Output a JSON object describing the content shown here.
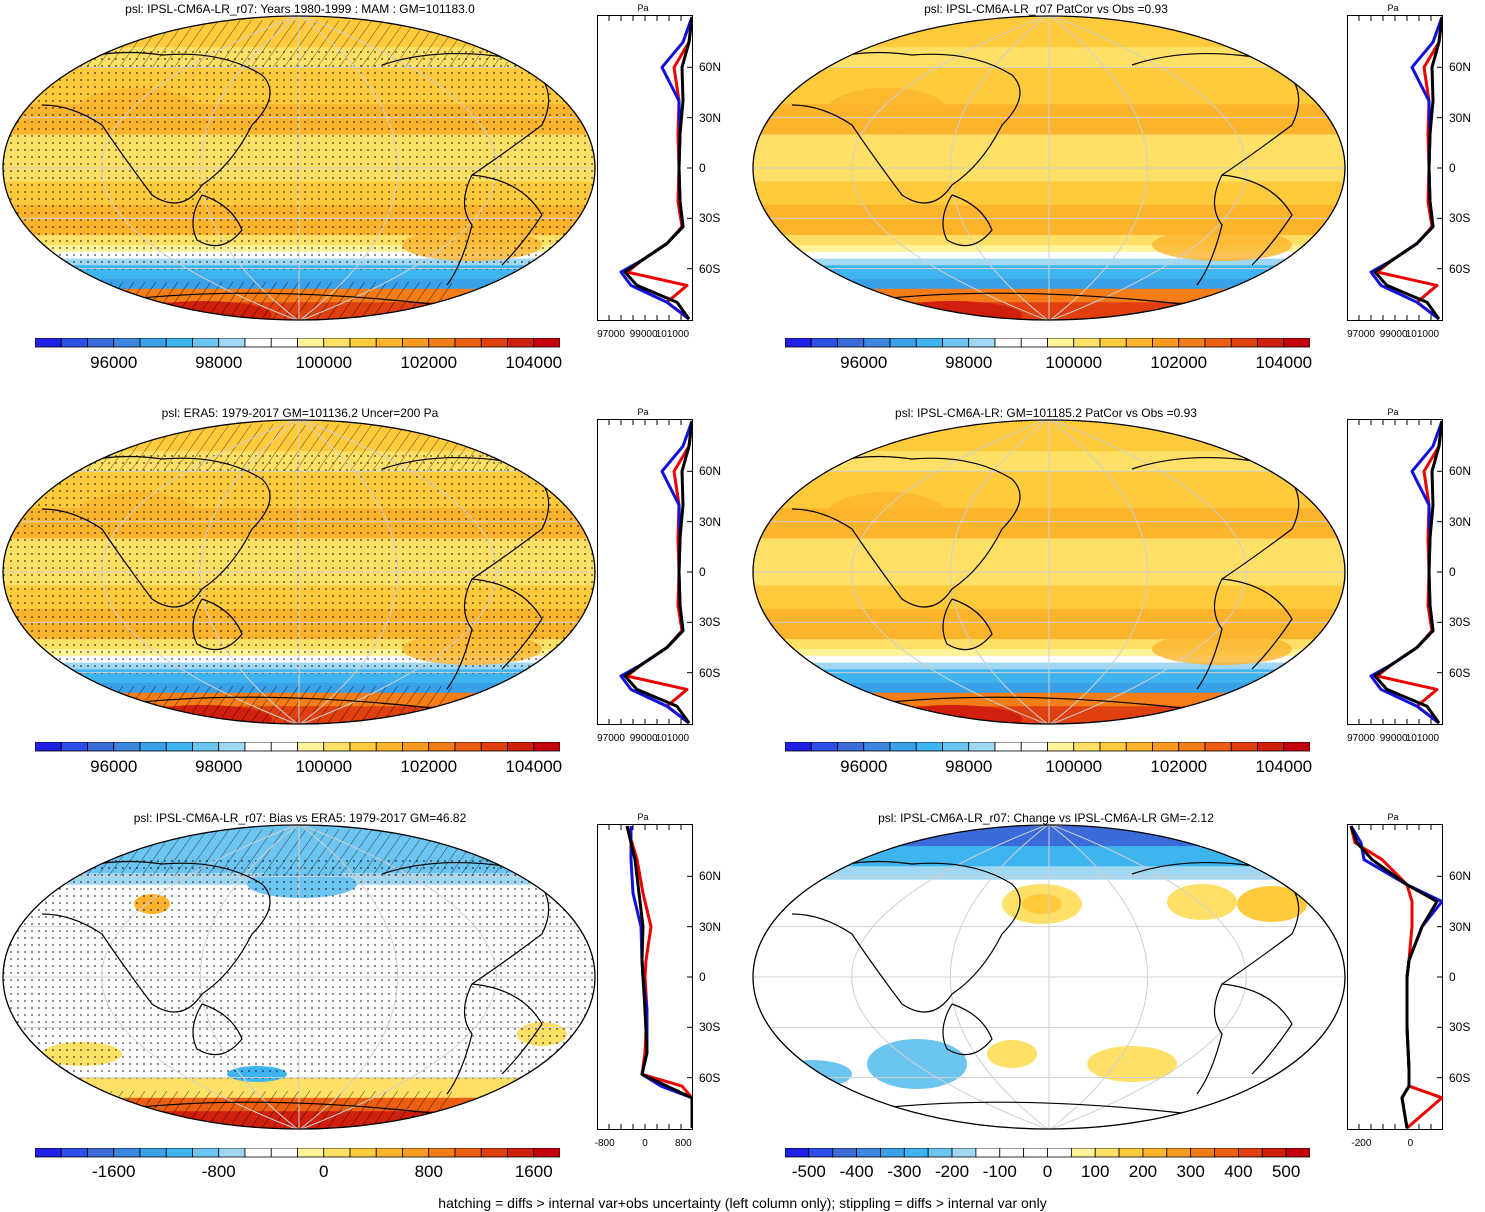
{
  "panels": [
    {
      "id": "p1",
      "title": "psl: IPSL-CM6A-LR_r07: Years 1980-1999 : MAM : GM=101183.0",
      "palette": "abs",
      "hatch": true,
      "stipple": true,
      "profile": "abs",
      "cbar_labels": [
        "96000",
        "98000",
        "100000",
        "102000",
        "104000"
      ],
      "prof_x": [
        "97000",
        "99000",
        "101000"
      ]
    },
    {
      "id": "p2",
      "title": "psl: IPSL-CM6A-LR_r07 PatCor vs Obs =0.93",
      "palette": "abs",
      "hatch": false,
      "stipple": false,
      "profile": "abs",
      "cbar_labels": [
        "96000",
        "98000",
        "100000",
        "102000",
        "104000"
      ],
      "prof_x": [
        "97000",
        "99000",
        "101000"
      ]
    },
    {
      "id": "p3",
      "title": "psl: ERA5: 1979-2017 GM=101136.2 Uncer=200 Pa",
      "palette": "abs",
      "hatch": true,
      "stipple": true,
      "profile": "abs",
      "cbar_labels": [
        "96000",
        "98000",
        "100000",
        "102000",
        "104000"
      ],
      "prof_x": [
        "97000",
        "99000",
        "101000"
      ]
    },
    {
      "id": "p4",
      "title": "psl: IPSL-CM6A-LR: GM=101185.2 PatCor vs Obs =0.93",
      "palette": "abs",
      "hatch": false,
      "stipple": false,
      "profile": "abs",
      "cbar_labels": [
        "96000",
        "98000",
        "100000",
        "102000",
        "104000"
      ],
      "prof_x": [
        "97000",
        "99000",
        "101000"
      ]
    },
    {
      "id": "p5",
      "title": "psl: IPSL-CM6A-LR_r07: Bias vs ERA5: 1979-2017 GM=46.82",
      "palette": "bias",
      "hatch": true,
      "stipple": true,
      "profile": "bias",
      "cbar_labels": [
        "-1600",
        "-800",
        "0",
        "800",
        "1600"
      ],
      "prof_x": [
        "-800",
        "0",
        "800"
      ]
    },
    {
      "id": "p6",
      "title": "psl: IPSL-CM6A-LR_r07: Change vs IPSL-CM6A-LR GM=-2.12",
      "palette": "change",
      "hatch": false,
      "stipple": false,
      "profile": "change",
      "cbar_labels": [
        "-500",
        "-400",
        "-300",
        "-200",
        "-100",
        "0",
        "100",
        "200",
        "300",
        "400",
        "500"
      ],
      "prof_x": [
        "-200",
        "0"
      ]
    }
  ],
  "lat_labels": [
    "60N",
    "30N",
    "0",
    "30S",
    "60S"
  ],
  "profile_unit": "Pa",
  "colormap": [
    "#1f1fe5",
    "#2d4ee8",
    "#3a6bd9",
    "#3d86df",
    "#3aa0e8",
    "#3fb5ef",
    "#6cc4f0",
    "#a0d8f3",
    "#ffffff",
    "#ffffff",
    "#fff39a",
    "#ffe066",
    "#ffcb3d",
    "#fdb42d",
    "#f99b21",
    "#f47d17",
    "#ec5e12",
    "#e0400f",
    "#d11f0e",
    "#c4000d"
  ],
  "footer": "hatching = diffs > internal var+obs uncertainty (left column only); stippling = diffs > internal var only",
  "chart_data": [
    {
      "type": "heatmap",
      "title": "psl: IPSL-CM6A-LR_r07: Years 1980-1999 : MAM : GM=101183.0",
      "colorbar_ticks": [
        96000,
        98000,
        100000,
        102000,
        104000
      ],
      "zonal_profile": {
        "ylabels": [
          "60N",
          "30N",
          "0",
          "30S",
          "60S"
        ],
        "xticks": [
          97000,
          99000,
          101000
        ],
        "series": [
          {
            "color": "red"
          },
          {
            "color": "blue"
          },
          {
            "color": "black"
          }
        ]
      }
    },
    {
      "type": "heatmap",
      "title": "psl: IPSL-CM6A-LR_r07 PatCor vs Obs =0.93",
      "colorbar_ticks": [
        96000,
        98000,
        100000,
        102000,
        104000
      ]
    },
    {
      "type": "heatmap",
      "title": "psl: ERA5: 1979-2017 GM=101136.2 Uncer=200 Pa",
      "colorbar_ticks": [
        96000,
        98000,
        100000,
        102000,
        104000
      ]
    },
    {
      "type": "heatmap",
      "title": "psl: IPSL-CM6A-LR: GM=101185.2 PatCor vs Obs =0.93",
      "colorbar_ticks": [
        96000,
        98000,
        100000,
        102000,
        104000
      ]
    },
    {
      "type": "heatmap",
      "title": "psl: IPSL-CM6A-LR_r07: Bias vs ERA5: 1979-2017 GM=46.82",
      "colorbar_ticks": [
        -1600,
        -800,
        0,
        800,
        1600
      ],
      "zonal_profile": {
        "xticks": [
          -800,
          0,
          800
        ]
      }
    },
    {
      "type": "heatmap",
      "title": "psl: IPSL-CM6A-LR_r07: Change vs IPSL-CM6A-LR GM=-2.12",
      "colorbar_ticks": [
        -500,
        -400,
        -300,
        -200,
        -100,
        0,
        100,
        200,
        300,
        400,
        500
      ],
      "zonal_profile": {
        "xticks": [
          -200,
          0
        ]
      }
    }
  ]
}
